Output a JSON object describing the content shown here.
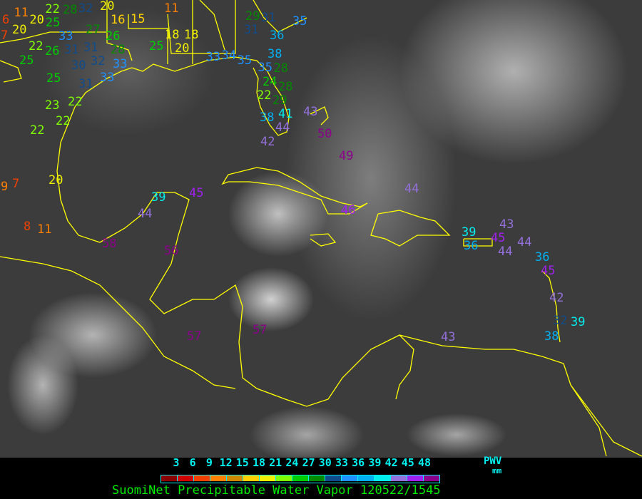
{
  "title": "SuomiNet Precipitable Water Vapor 120522/1545",
  "legend": {
    "unit_top": "PWV",
    "unit_bottom": "mm",
    "ticks": [
      "3",
      "6",
      "9",
      "12",
      "15",
      "18",
      "21",
      "24",
      "27",
      "30",
      "33",
      "36",
      "39",
      "42",
      "45",
      "48"
    ],
    "colors": [
      "#8b0000",
      "#d00000",
      "#f04000",
      "#ff8000",
      "#d08800",
      "#ffd000",
      "#f0f000",
      "#80ff00",
      "#00cc00",
      "#008a00",
      "#104c8c",
      "#1e90ff",
      "#00b0f0",
      "#00eeee",
      "#9370db",
      "#a020f0",
      "#8b008b"
    ]
  },
  "boundary_color": "#ffff00",
  "stations": [
    "11",
    "20",
    "20",
    "25",
    "22",
    "28",
    "32",
    "20",
    "16",
    "15",
    "33",
    "27",
    "26",
    "28",
    "22",
    "26",
    "31",
    "31",
    "30",
    "32",
    "33",
    "25",
    "25",
    "33",
    "31",
    "23",
    "22",
    "22",
    "22",
    "11",
    "18",
    "18",
    "20",
    "25",
    "33",
    "34",
    "35",
    "29",
    "31",
    "31",
    "36",
    "35",
    "38",
    "35",
    "24",
    "28",
    "22",
    "28",
    "29",
    "38",
    "41",
    "44",
    "43",
    "42",
    "50",
    "49",
    "44",
    "46",
    "39",
    "45",
    "44",
    "58",
    "56",
    "57",
    "57",
    "39",
    "36",
    "43",
    "45",
    "44",
    "44",
    "36",
    "45",
    "42",
    "32",
    "39",
    "38",
    "43",
    "7",
    "9",
    "8",
    "11",
    "20",
    "7",
    "6"
  ]
}
